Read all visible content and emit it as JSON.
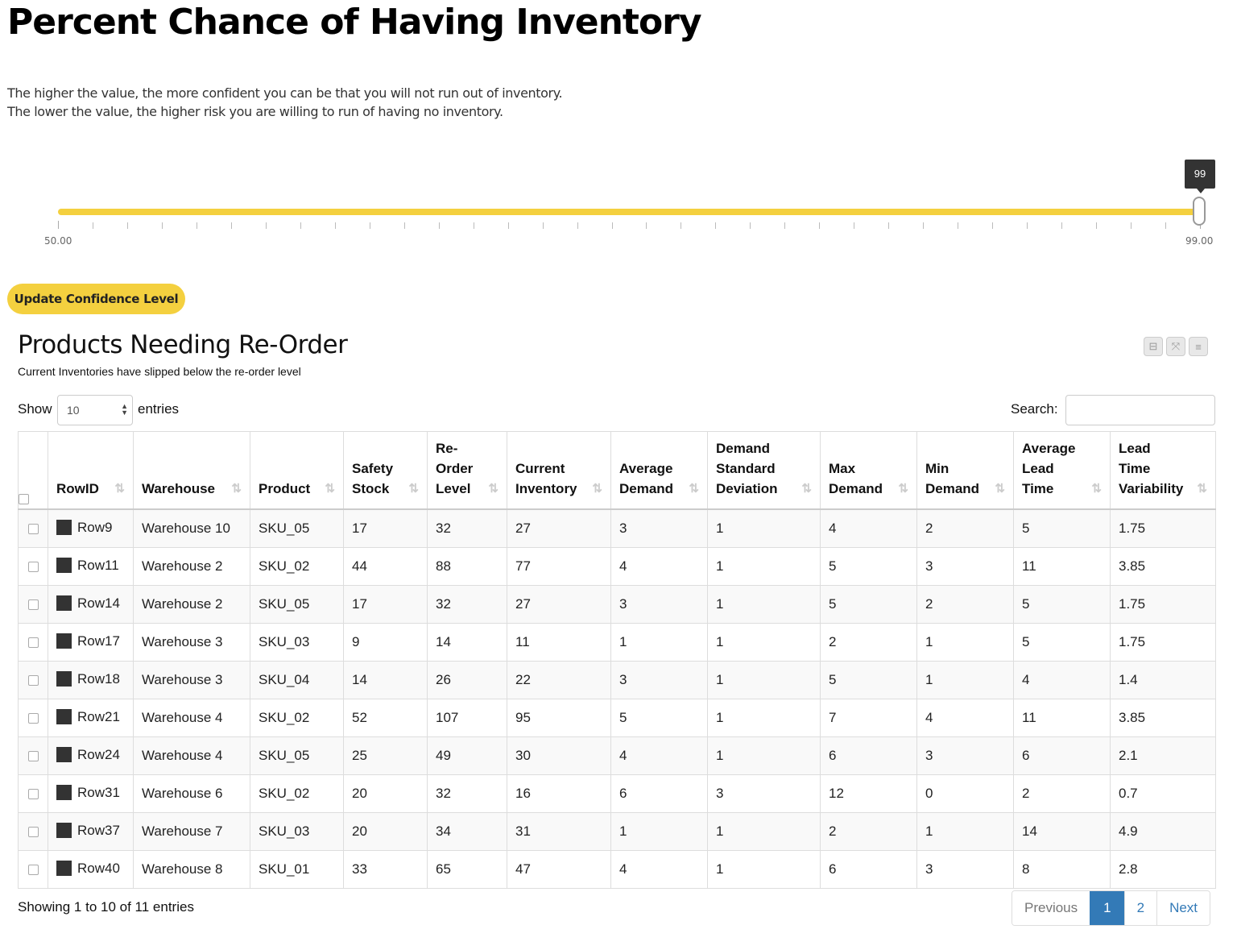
{
  "page": {
    "title": "Percent Chance of Having Inventory",
    "description_line1": "The higher the value, the more confident you can be that you will not run out of inventory.",
    "description_line2": "The lower the value, the higher risk you are willing to run of having no inventory."
  },
  "slider": {
    "min_label": "50.00",
    "max_label": "99.00",
    "value": "99",
    "min": 50,
    "max": 99,
    "color": "#f4d03f"
  },
  "update_button": {
    "label": "Update Confidence Level"
  },
  "panel": {
    "title": "Products Needing Re-Order",
    "subtitle": "Current Inventories have slipped below the re-order level",
    "tools": [
      "minimize-icon",
      "expand-icon",
      "menu-icon"
    ]
  },
  "controls": {
    "show_label": "Show",
    "length_value": "10",
    "entries_label": "entries",
    "search_label": "Search:",
    "search_value": ""
  },
  "table": {
    "columns": [
      {
        "key": "rowid",
        "lines": [
          "RowID"
        ]
      },
      {
        "key": "warehouse",
        "lines": [
          "Warehouse"
        ]
      },
      {
        "key": "product",
        "lines": [
          "Product"
        ]
      },
      {
        "key": "safety_stock",
        "lines": [
          "Safety",
          "Stock"
        ]
      },
      {
        "key": "reorder_level",
        "lines": [
          "Re-",
          "Order",
          "Level"
        ]
      },
      {
        "key": "current_inventory",
        "lines": [
          "Current",
          "Inventory"
        ]
      },
      {
        "key": "average_demand",
        "lines": [
          "Average",
          "Demand"
        ]
      },
      {
        "key": "demand_std",
        "lines": [
          "Demand",
          "Standard",
          "Deviation"
        ]
      },
      {
        "key": "max_demand",
        "lines": [
          "Max",
          "Demand"
        ]
      },
      {
        "key": "min_demand",
        "lines": [
          "Min",
          "Demand"
        ]
      },
      {
        "key": "avg_lead_time",
        "lines": [
          "Average",
          "Lead",
          "Time"
        ]
      },
      {
        "key": "lead_time_var",
        "lines": [
          "Lead",
          "Time",
          "Variability"
        ]
      }
    ],
    "rows": [
      [
        "Row9",
        "Warehouse 10",
        "SKU_05",
        "17",
        "32",
        "27",
        "3",
        "1",
        "4",
        "2",
        "5",
        "1.75"
      ],
      [
        "Row11",
        "Warehouse 2",
        "SKU_02",
        "44",
        "88",
        "77",
        "4",
        "1",
        "5",
        "3",
        "11",
        "3.85"
      ],
      [
        "Row14",
        "Warehouse 2",
        "SKU_05",
        "17",
        "32",
        "27",
        "3",
        "1",
        "5",
        "2",
        "5",
        "1.75"
      ],
      [
        "Row17",
        "Warehouse 3",
        "SKU_03",
        "9",
        "14",
        "11",
        "1",
        "1",
        "2",
        "1",
        "5",
        "1.75"
      ],
      [
        "Row18",
        "Warehouse 3",
        "SKU_04",
        "14",
        "26",
        "22",
        "3",
        "1",
        "5",
        "1",
        "4",
        "1.4"
      ],
      [
        "Row21",
        "Warehouse 4",
        "SKU_02",
        "52",
        "107",
        "95",
        "5",
        "1",
        "7",
        "4",
        "11",
        "3.85"
      ],
      [
        "Row24",
        "Warehouse 4",
        "SKU_05",
        "25",
        "49",
        "30",
        "4",
        "1",
        "6",
        "3",
        "6",
        "2.1"
      ],
      [
        "Row31",
        "Warehouse 6",
        "SKU_02",
        "20",
        "32",
        "16",
        "6",
        "3",
        "12",
        "0",
        "2",
        "0.7"
      ],
      [
        "Row37",
        "Warehouse 7",
        "SKU_03",
        "20",
        "34",
        "31",
        "1",
        "1",
        "2",
        "1",
        "14",
        "4.9"
      ],
      [
        "Row40",
        "Warehouse 8",
        "SKU_01",
        "33",
        "65",
        "47",
        "4",
        "1",
        "6",
        "3",
        "8",
        "2.8"
      ]
    ]
  },
  "footer": {
    "info": "Showing 1 to 10 of 11 entries",
    "pages": [
      {
        "label": "Previous",
        "state": "disabled"
      },
      {
        "label": "1",
        "state": "active"
      },
      {
        "label": "2",
        "state": ""
      },
      {
        "label": "Next",
        "state": ""
      }
    ]
  }
}
